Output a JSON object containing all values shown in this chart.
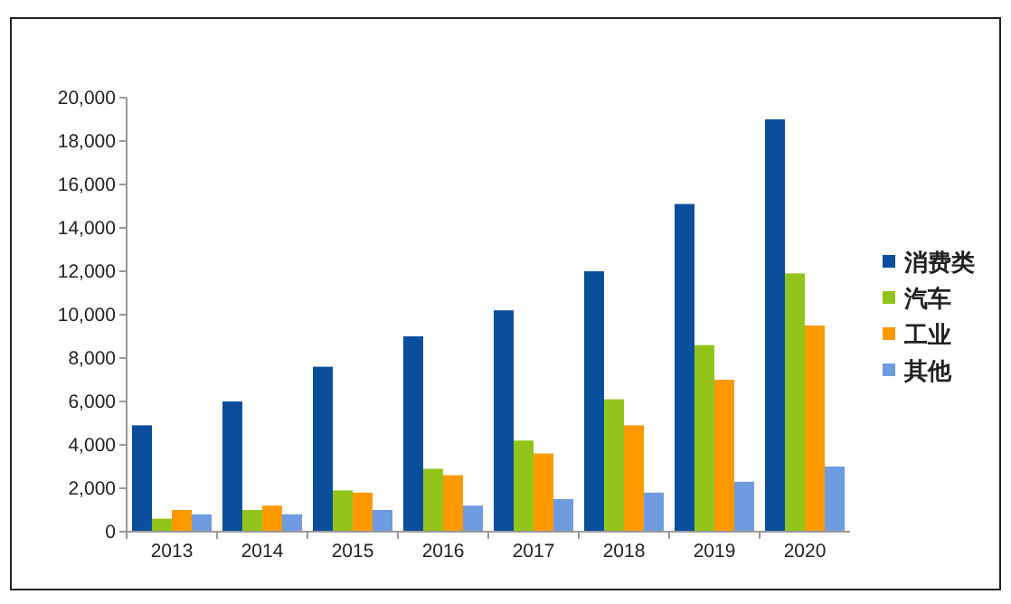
{
  "chart_data": {
    "type": "bar",
    "categories": [
      "2013",
      "2014",
      "2015",
      "2016",
      "2017",
      "2018",
      "2019",
      "2020"
    ],
    "series": [
      {
        "name": "消费类",
        "color": "#0b4f9c",
        "values": [
          4900,
          6000,
          7600,
          9000,
          10200,
          12000,
          15100,
          19000
        ]
      },
      {
        "name": "汽车",
        "color": "#92c41a",
        "values": [
          600,
          1000,
          1900,
          2900,
          4200,
          6100,
          8600,
          11900
        ]
      },
      {
        "name": "工业",
        "color": "#ff9900",
        "values": [
          1000,
          1200,
          1800,
          2600,
          3600,
          4900,
          7000,
          9500
        ]
      },
      {
        "name": "其他",
        "color": "#6f9be0",
        "values": [
          800,
          800,
          1000,
          1200,
          1500,
          1800,
          2300,
          3000
        ]
      }
    ],
    "ylim": [
      0,
      20000
    ],
    "yticks": [
      {
        "value": 0,
        "label": "0"
      },
      {
        "value": 2000,
        "label": "2,000"
      },
      {
        "value": 4000,
        "label": "4,000"
      },
      {
        "value": 6000,
        "label": "6,000"
      },
      {
        "value": 8000,
        "label": "8,000"
      },
      {
        "value": 10000,
        "label": "10,000"
      },
      {
        "value": 12000,
        "label": "12,000"
      },
      {
        "value": 14000,
        "label": "14,000"
      },
      {
        "value": 16000,
        "label": "16,000"
      },
      {
        "value": 18000,
        "label": "18,000"
      },
      {
        "value": 20000,
        "label": "20,000"
      }
    ],
    "grid": false,
    "legend": "right"
  }
}
